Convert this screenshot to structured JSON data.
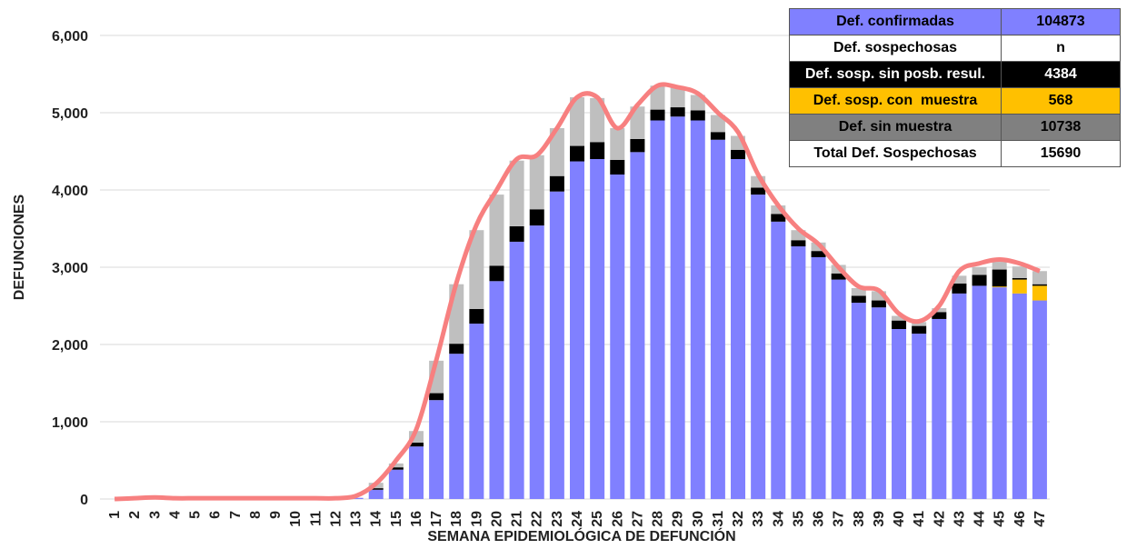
{
  "chart_data": {
    "type": "stacked-bar",
    "x_label": "SEMANA EPIDEMIOLÓGICA DE DEFUNCIÓN",
    "y_label": "DEFUNCIONES",
    "categories": [
      "1",
      "2",
      "3",
      "4",
      "5",
      "6",
      "7",
      "8",
      "9",
      "10",
      "11",
      "12",
      "13",
      "14",
      "15",
      "16",
      "17",
      "18",
      "19",
      "20",
      "21",
      "22",
      "23",
      "24",
      "25",
      "26",
      "27",
      "28",
      "29",
      "30",
      "31",
      "32",
      "33",
      "34",
      "35",
      "36",
      "37",
      "38",
      "39",
      "40",
      "41",
      "42",
      "43",
      "44",
      "45",
      "46",
      "47"
    ],
    "series": [
      {
        "color": "#8080ff",
        "values": [
          0,
          5,
          10,
          5,
          5,
          5,
          5,
          5,
          5,
          5,
          5,
          5,
          15,
          120,
          380,
          680,
          1280,
          1880,
          2270,
          2820,
          3330,
          3540,
          3980,
          4370,
          4400,
          4200,
          4490,
          4900,
          4950,
          4900,
          4650,
          4400,
          3940,
          3590,
          3270,
          3130,
          2840,
          2540,
          2480,
          2200,
          2140,
          2330,
          2660,
          2760,
          2740,
          2660,
          2570
        ]
      },
      {
        "color": "#ffc000",
        "values": [
          0,
          0,
          0,
          0,
          0,
          0,
          0,
          0,
          0,
          0,
          0,
          0,
          0,
          0,
          0,
          0,
          0,
          0,
          0,
          0,
          0,
          0,
          0,
          0,
          0,
          0,
          0,
          0,
          0,
          0,
          0,
          0,
          0,
          0,
          0,
          0,
          0,
          0,
          0,
          0,
          0,
          0,
          0,
          0,
          10,
          180,
          190
        ]
      },
      {
        "color": "#000000",
        "values": [
          0,
          0,
          0,
          0,
          0,
          0,
          0,
          0,
          0,
          0,
          0,
          0,
          0,
          20,
          30,
          50,
          90,
          130,
          190,
          200,
          200,
          210,
          200,
          200,
          220,
          190,
          170,
          140,
          120,
          130,
          100,
          120,
          90,
          100,
          80,
          80,
          80,
          90,
          90,
          110,
          100,
          90,
          130,
          140,
          220,
          20,
          20
        ]
      },
      {
        "color": "#bfbfbf",
        "values": [
          0,
          0,
          0,
          0,
          0,
          0,
          0,
          0,
          0,
          0,
          0,
          0,
          0,
          70,
          50,
          150,
          420,
          770,
          1020,
          920,
          850,
          700,
          620,
          630,
          570,
          410,
          420,
          310,
          260,
          200,
          220,
          180,
          150,
          110,
          130,
          110,
          110,
          100,
          120,
          60,
          50,
          50,
          100,
          100,
          100,
          150,
          170
        ]
      }
    ],
    "line": {
      "color": "#f78080",
      "values": [
        0,
        10,
        20,
        10,
        10,
        10,
        10,
        10,
        10,
        10,
        10,
        10,
        40,
        200,
        500,
        900,
        1800,
        2800,
        3550,
        4000,
        4400,
        4450,
        4800,
        5200,
        5200,
        4800,
        5100,
        5350,
        5330,
        5250,
        5000,
        4750,
        4200,
        3800,
        3500,
        3300,
        3000,
        2750,
        2700,
        2400,
        2300,
        2500,
        2950,
        3050,
        3100,
        3050,
        2950
      ]
    },
    "ylim": [
      0,
      6000
    ],
    "yticks": [
      0,
      {
        "value": 1000,
        "label": "1,000"
      },
      {
        "value": 2000,
        "label": "2,000"
      },
      {
        "value": 3000,
        "label": "3,000"
      },
      {
        "value": 4000,
        "label": "4,000"
      },
      {
        "value": 5000,
        "label": "5,000"
      },
      {
        "value": 6000,
        "label": "6,000"
      }
    ],
    "grid": true
  },
  "table": {
    "rows": [
      [
        "Def. confirmadas",
        "104873"
      ],
      [
        "Def. sospechosas",
        "n"
      ],
      [
        "Def. sosp. sin posb. resul.",
        "4384"
      ],
      [
        "Def. sosp. con  muestra",
        "568"
      ],
      [
        "Def. sin muestra",
        "10738"
      ],
      [
        "Total Def. Sospechosas",
        "15690"
      ]
    ]
  }
}
